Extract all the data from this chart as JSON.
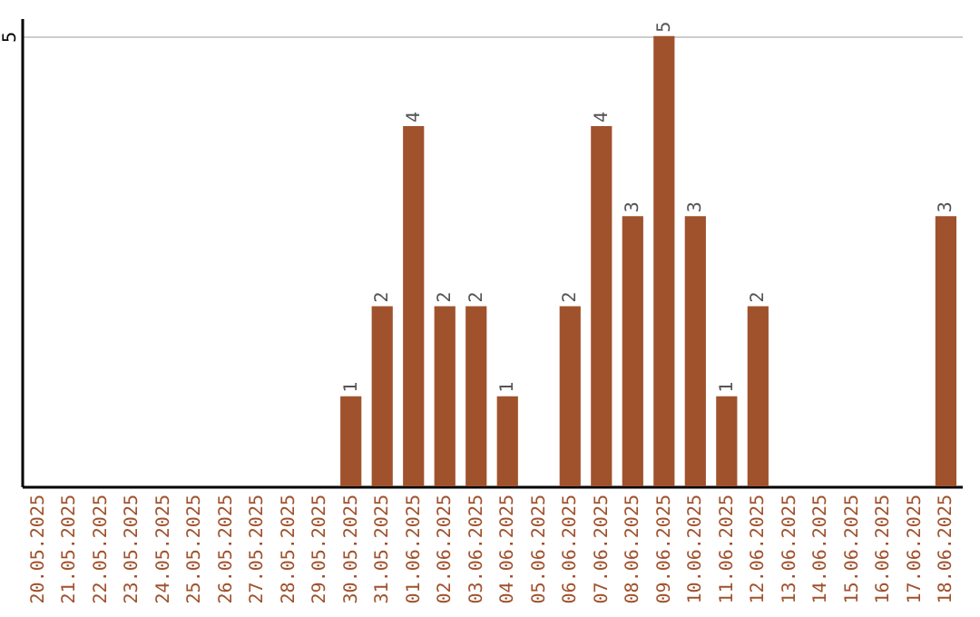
{
  "chart_data": {
    "type": "bar",
    "categories": [
      "20.05.2025",
      "21.05.2025",
      "22.05.2025",
      "23.05.2025",
      "24.05.2025",
      "25.05.2025",
      "26.05.2025",
      "27.05.2025",
      "28.05.2025",
      "29.05.2025",
      "30.05.2025",
      "31.05.2025",
      "01.06.2025",
      "02.06.2025",
      "03.06.2025",
      "04.06.2025",
      "05.06.2025",
      "06.06.2025",
      "07.06.2025",
      "08.06.2025",
      "09.06.2025",
      "10.06.2025",
      "11.06.2025",
      "12.06.2025",
      "13.06.2025",
      "14.06.2025",
      "15.06.2025",
      "16.06.2025",
      "17.06.2025",
      "18.06.2025"
    ],
    "values": [
      0,
      0,
      0,
      0,
      0,
      0,
      0,
      0,
      0,
      0,
      1,
      2,
      4,
      2,
      2,
      1,
      0,
      2,
      4,
      3,
      5,
      3,
      1,
      2,
      0,
      0,
      0,
      0,
      0,
      3
    ],
    "value_labels": [
      null,
      null,
      null,
      null,
      null,
      null,
      null,
      null,
      null,
      null,
      "1",
      "2",
      "4",
      "2",
      "2",
      "1",
      null,
      "2",
      "4",
      "3",
      "5",
      "3",
      "1",
      "2",
      null,
      null,
      null,
      null,
      null,
      "3"
    ],
    "color": "#a0522d",
    "ylim": [
      0,
      5.2
    ],
    "yticks": [
      5
    ],
    "grid": "y"
  }
}
